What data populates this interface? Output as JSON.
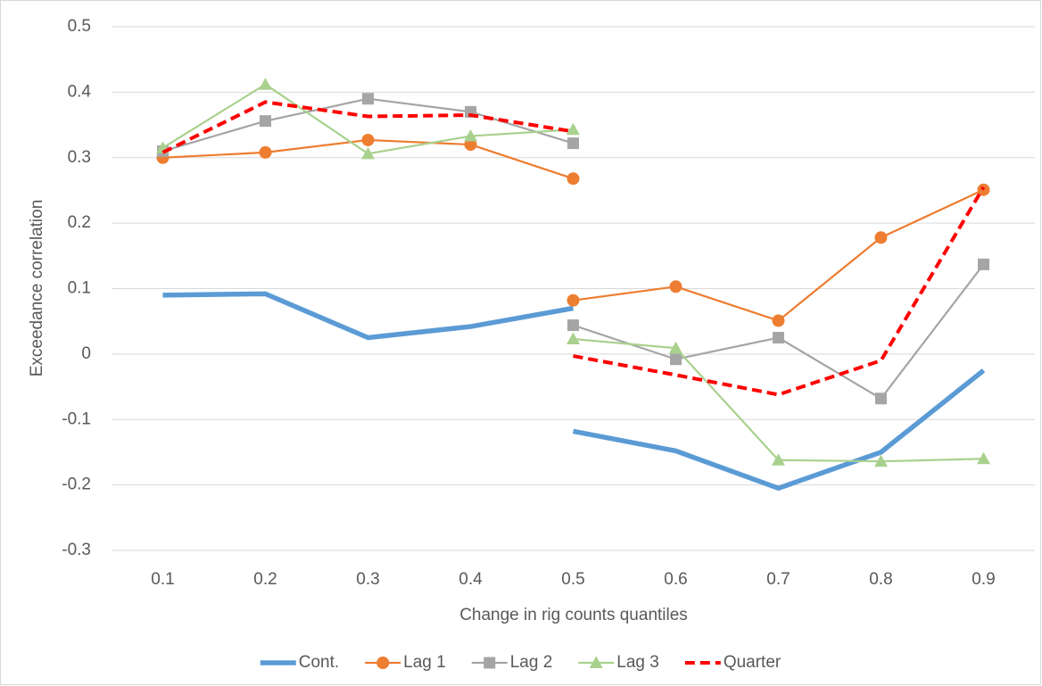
{
  "chart_data": {
    "type": "line",
    "y_label": "Exceedance correlation",
    "x_label": "Change in rig counts quantiles",
    "x": [
      0.1,
      0.2,
      0.3,
      0.4,
      0.5,
      null,
      0.5,
      0.6,
      0.7,
      0.8,
      0.9
    ],
    "xlim": [
      0.05,
      0.95
    ],
    "xticks": [
      0.1,
      0.2,
      0.3,
      0.4,
      0.5,
      0.6,
      0.7,
      0.8,
      0.9
    ],
    "ylim": [
      -0.3,
      0.5
    ],
    "yticks": [
      -0.3,
      -0.2,
      -0.1,
      0,
      0.1,
      0.2,
      0.3,
      0.4,
      0.5
    ],
    "grid": true,
    "legend": "bottom",
    "series": [
      {
        "name": "Cont.",
        "color": "#5b9bd5",
        "marker": "none",
        "line_style": "solid",
        "values": [
          0.09,
          0.092,
          0.025,
          0.042,
          0.07,
          null,
          -0.118,
          -0.148,
          -0.205,
          -0.15,
          -0.025
        ]
      },
      {
        "name": "Lag 1",
        "color": "#ed7d31",
        "marker": "circle",
        "line_style": "solid",
        "values": [
          0.3,
          0.308,
          0.327,
          0.32,
          0.268,
          null,
          0.082,
          0.103,
          0.051,
          0.178,
          0.251
        ]
      },
      {
        "name": "Lag 2",
        "color": "#a5a5a5",
        "marker": "square",
        "line_style": "solid",
        "values": [
          0.31,
          0.356,
          0.39,
          0.37,
          0.322,
          null,
          0.044,
          -0.008,
          0.025,
          -0.068,
          0.137
        ]
      },
      {
        "name": "Lag 3",
        "color": "#a9d18e",
        "marker": "triangle",
        "line_style": "solid",
        "values": [
          0.315,
          0.412,
          0.306,
          0.333,
          0.343,
          null,
          0.023,
          0.009,
          -0.162,
          -0.164,
          -0.16
        ]
      },
      {
        "name": "Quarter",
        "color": "#ff0000",
        "marker": "none",
        "line_style": "dashed",
        "values": [
          0.308,
          0.385,
          0.363,
          0.365,
          0.34,
          null,
          -0.003,
          -0.032,
          -0.062,
          -0.01,
          0.255
        ]
      }
    ]
  }
}
